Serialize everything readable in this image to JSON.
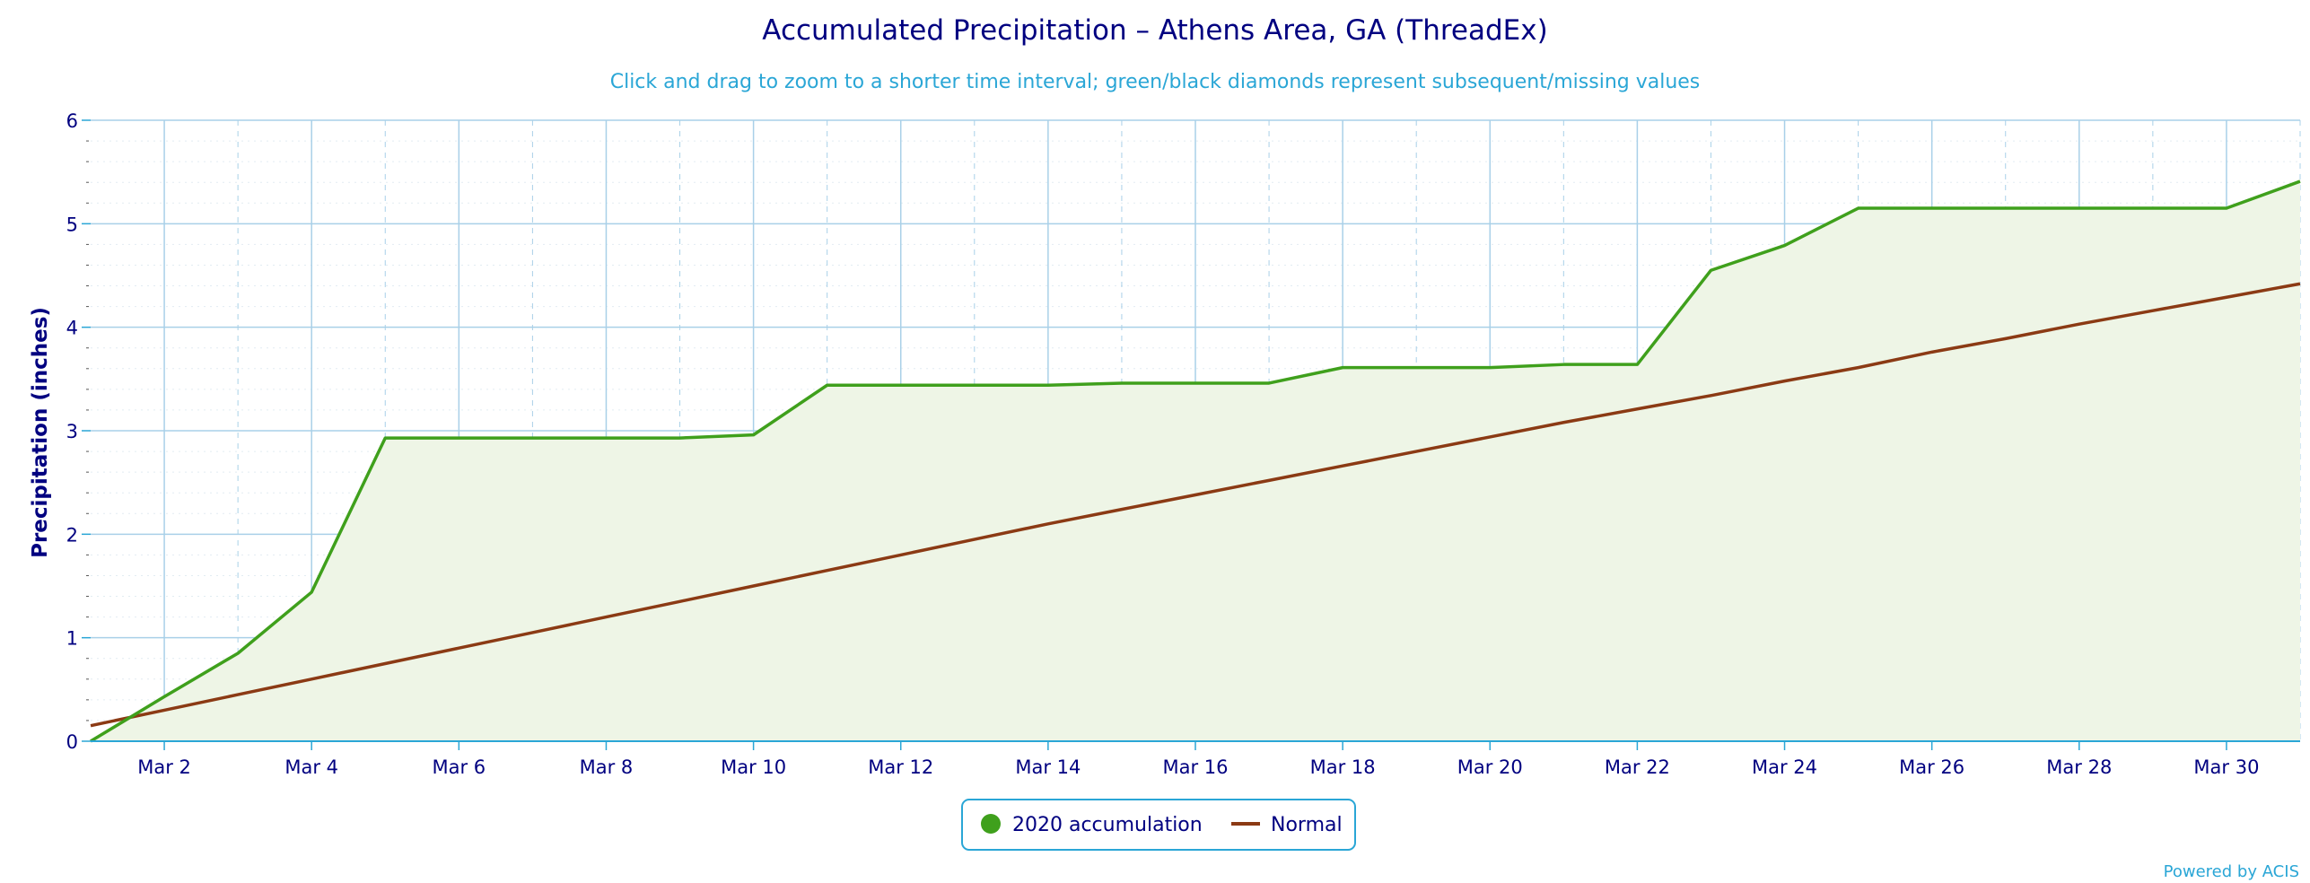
{
  "chart_data": {
    "type": "area",
    "title": "Accumulated Precipitation – Athens Area, GA (ThreadEx)",
    "subtitle": "Click and drag to zoom to a shorter time interval; green/black diamonds represent subsequent/missing values",
    "ylabel": "Precipitation (inches)",
    "xlabel": "",
    "xlim": [
      1,
      31
    ],
    "ylim": [
      0,
      6
    ],
    "yticks": [
      "0",
      "1",
      "2",
      "3",
      "4",
      "5",
      "6"
    ],
    "xticks": [
      {
        "day": 2,
        "label": "Mar 2"
      },
      {
        "day": 4,
        "label": "Mar 4"
      },
      {
        "day": 6,
        "label": "Mar 6"
      },
      {
        "day": 8,
        "label": "Mar 8"
      },
      {
        "day": 10,
        "label": "Mar 10"
      },
      {
        "day": 12,
        "label": "Mar 12"
      },
      {
        "day": 14,
        "label": "Mar 14"
      },
      {
        "day": 16,
        "label": "Mar 16"
      },
      {
        "day": 18,
        "label": "Mar 18"
      },
      {
        "day": 20,
        "label": "Mar 20"
      },
      {
        "day": 22,
        "label": "Mar 22"
      },
      {
        "day": 24,
        "label": "Mar 24"
      },
      {
        "day": 26,
        "label": "Mar 26"
      },
      {
        "day": 28,
        "label": "Mar 28"
      },
      {
        "day": 30,
        "label": "Mar 30"
      }
    ],
    "grid": true,
    "legend_position": "bottom-center",
    "series": [
      {
        "name": "2020 accumulation",
        "kind": "area",
        "color": "#3fa01c",
        "fill": "#eef5e6",
        "x": [
          1,
          2,
          3,
          4,
          5,
          6,
          7,
          8,
          9,
          10,
          11,
          12,
          13,
          14,
          15,
          16,
          17,
          18,
          19,
          20,
          21,
          22,
          23,
          24,
          25,
          26,
          27,
          28,
          29,
          30,
          31
        ],
        "values": [
          0.0,
          0.43,
          0.85,
          1.44,
          2.93,
          2.93,
          2.93,
          2.93,
          2.93,
          2.96,
          3.44,
          3.44,
          3.44,
          3.44,
          3.46,
          3.46,
          3.46,
          3.61,
          3.61,
          3.61,
          3.64,
          3.64,
          4.55,
          4.79,
          5.15,
          5.15,
          5.15,
          5.15,
          5.15,
          5.15,
          5.41
        ]
      },
      {
        "name": "Normal",
        "kind": "line",
        "color": "#8b3a14",
        "x": [
          1,
          2,
          3,
          4,
          5,
          6,
          7,
          8,
          9,
          10,
          11,
          12,
          13,
          14,
          15,
          16,
          17,
          18,
          19,
          20,
          21,
          22,
          23,
          24,
          25,
          26,
          27,
          28,
          29,
          30,
          31
        ],
        "values": [
          0.15,
          0.3,
          0.45,
          0.6,
          0.75,
          0.9,
          1.05,
          1.2,
          1.35,
          1.5,
          1.65,
          1.8,
          1.95,
          2.1,
          2.24,
          2.38,
          2.52,
          2.66,
          2.8,
          2.94,
          3.08,
          3.21,
          3.34,
          3.48,
          3.61,
          3.76,
          3.89,
          4.03,
          4.16,
          4.29,
          4.42
        ]
      }
    ]
  },
  "credit": "Powered by ACIS",
  "colors": {
    "axis_text": "#000080",
    "subtitle": "#2aa6d6",
    "grid": "#a9d0e8",
    "legend_border": "#2aa6d6"
  }
}
